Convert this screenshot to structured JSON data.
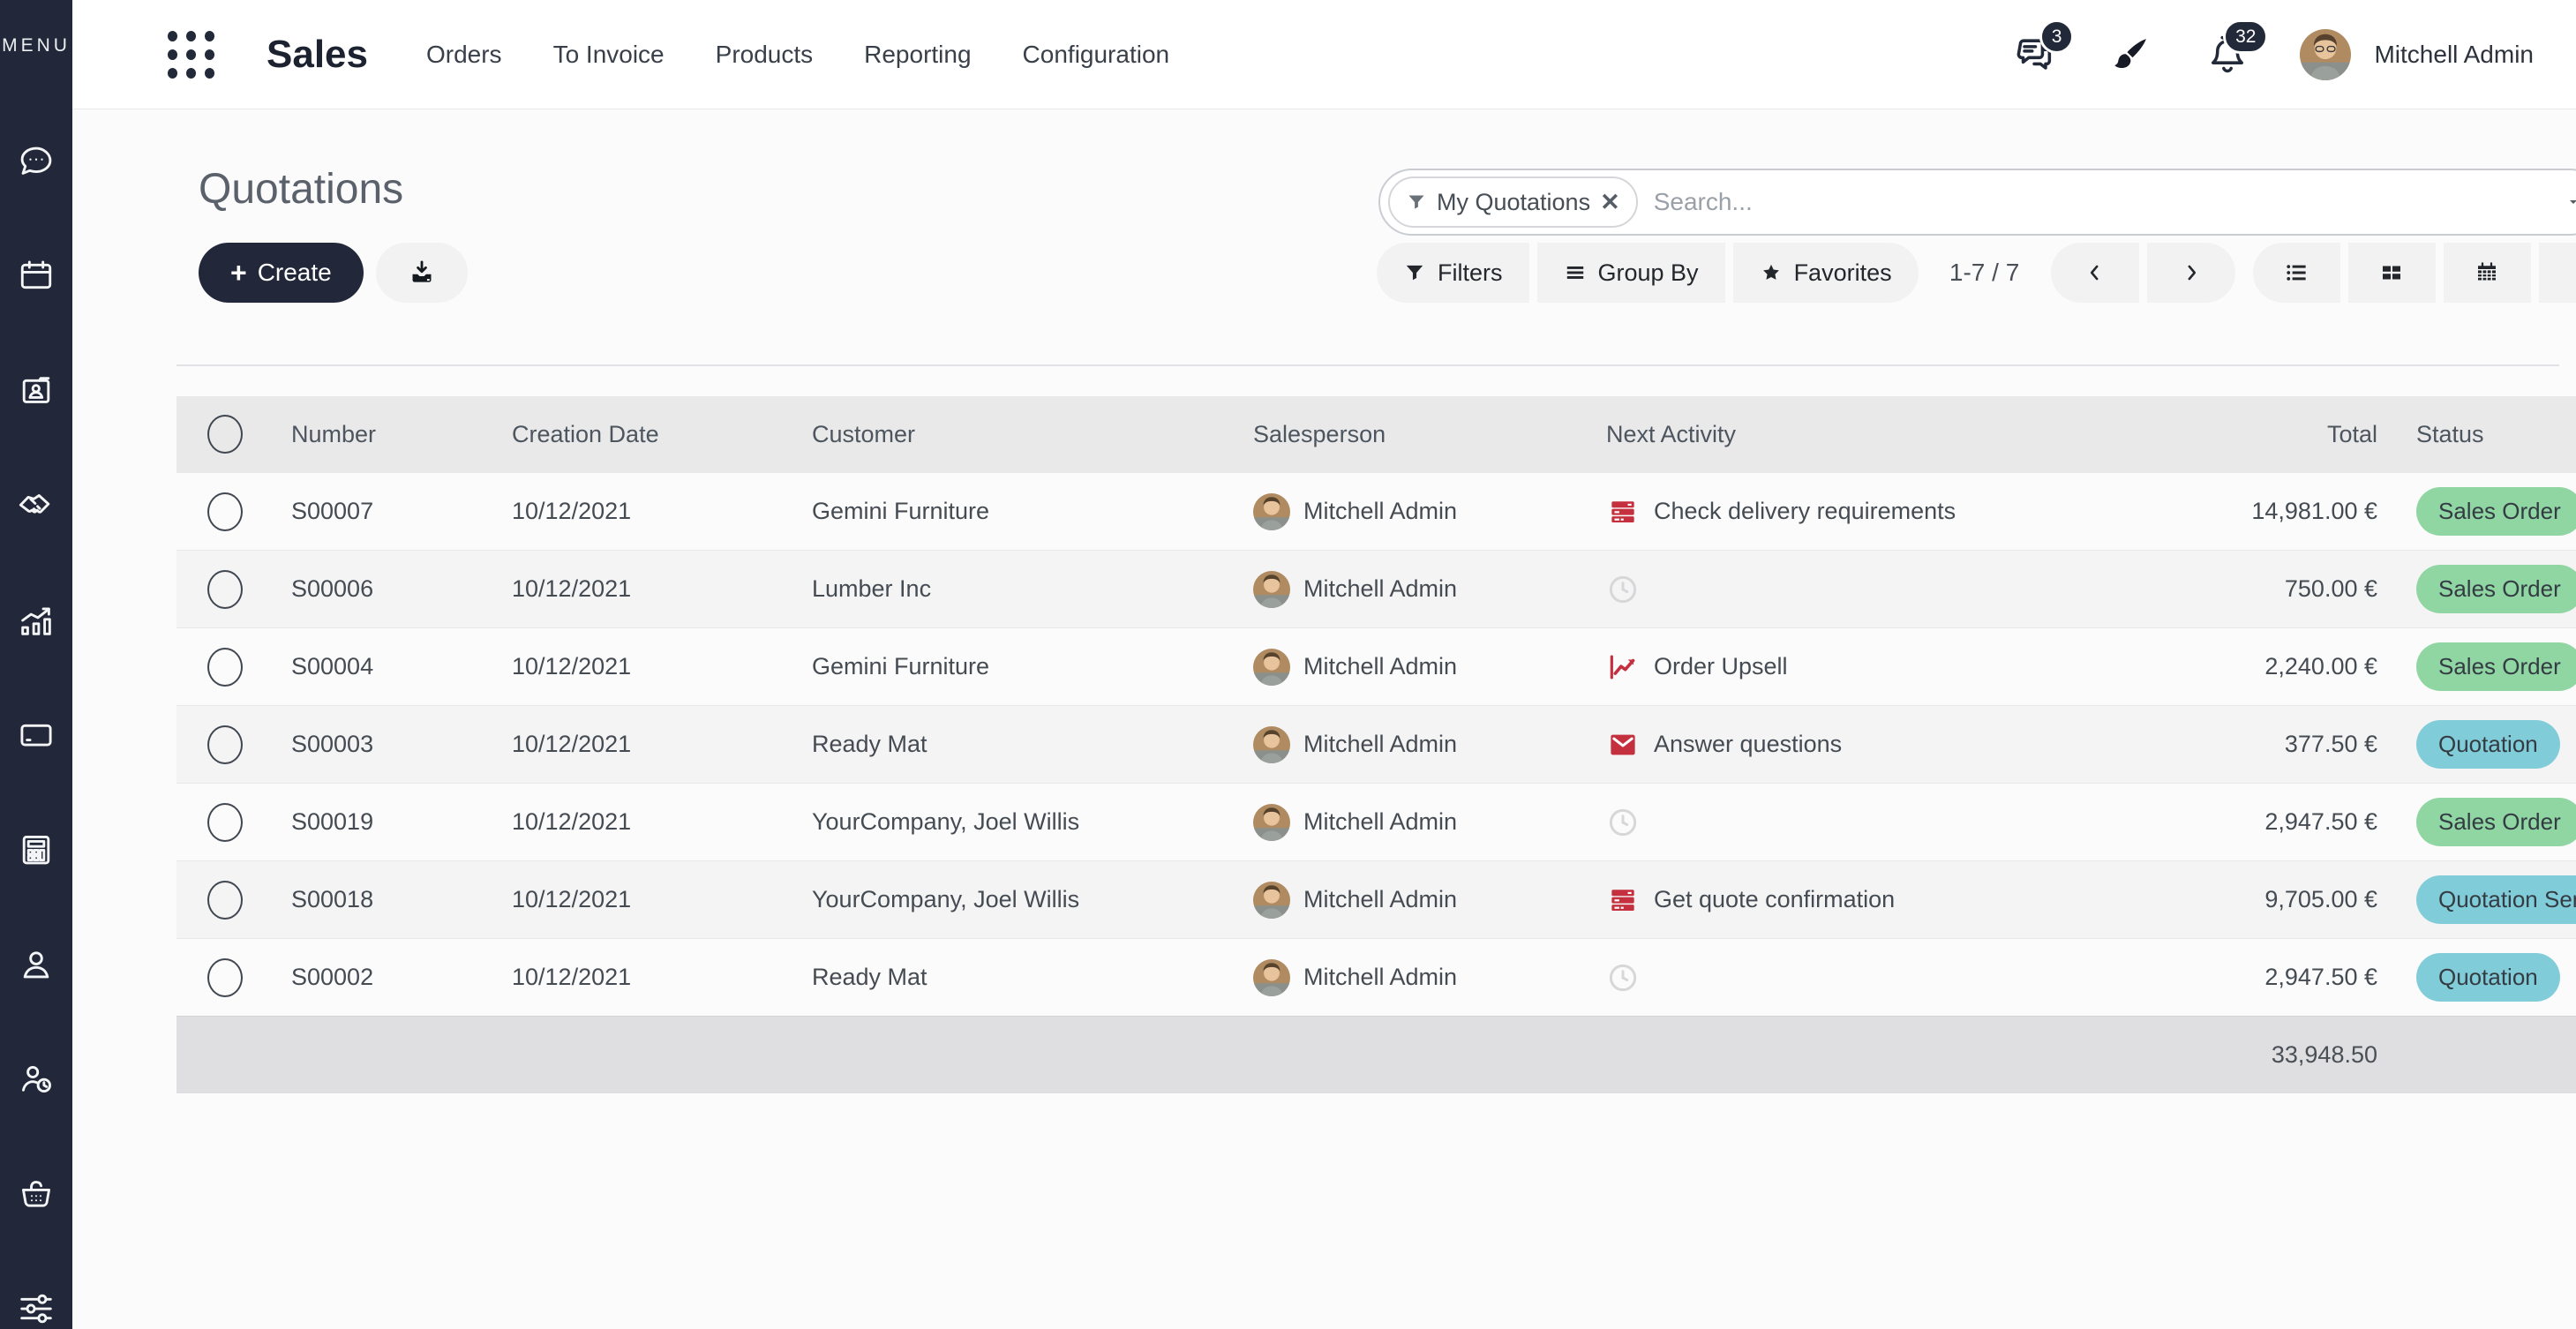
{
  "sidebar": {
    "menu_label": "MENU",
    "icons": [
      "discuss-icon",
      "calendar-icon",
      "contacts-icon",
      "crm-handshake-icon",
      "sales-chart-icon",
      "invoicing-card-icon",
      "accounting-calculator-icon",
      "employees-user-icon",
      "timesheets-user-clock-icon",
      "point-of-sale-basket-icon",
      "settings-sliders-icon"
    ]
  },
  "navbar": {
    "app_name": "Sales",
    "menu_items": [
      "Orders",
      "To Invoice",
      "Products",
      "Reporting",
      "Configuration"
    ],
    "message_badge": "3",
    "notification_badge": "32",
    "user_name": "Mitchell Admin"
  },
  "page": {
    "title": "Quotations",
    "create_label": "Create"
  },
  "search": {
    "filter_tag": "My Quotations",
    "placeholder": "Search..."
  },
  "controls": {
    "filters": "Filters",
    "group_by": "Group By",
    "favorites": "Favorites",
    "pager": "1-7 / 7"
  },
  "status_colors": {
    "sales_order": "#8fd6a3",
    "quotation": "#80cdd9"
  },
  "activity_color": "#c5303e",
  "table": {
    "columns": [
      "Number",
      "Creation Date",
      "Customer",
      "Salesperson",
      "Next Activity",
      "Total",
      "Status"
    ],
    "rows": [
      {
        "number": "S00007",
        "date": "10/12/2021",
        "customer": "Gemini Furniture",
        "salesperson": "Mitchell Admin",
        "activity_icon": "tasks-icon",
        "activity": "Check delivery requirements",
        "total": "14,981.00 €",
        "status": "Sales Order",
        "status_type": "sales_order"
      },
      {
        "number": "S00006",
        "date": "10/12/2021",
        "customer": "Lumber Inc",
        "salesperson": "Mitchell Admin",
        "activity_icon": "clock-icon",
        "activity": "",
        "total": "750.00 €",
        "status": "Sales Order",
        "status_type": "sales_order"
      },
      {
        "number": "S00004",
        "date": "10/12/2021",
        "customer": "Gemini Furniture",
        "salesperson": "Mitchell Admin",
        "activity_icon": "chart-icon",
        "activity": "Order Upsell",
        "total": "2,240.00 €",
        "status": "Sales Order",
        "status_type": "sales_order"
      },
      {
        "number": "S00003",
        "date": "10/12/2021",
        "customer": "Ready Mat",
        "salesperson": "Mitchell Admin",
        "activity_icon": "envelope-icon",
        "activity": "Answer questions",
        "total": "377.50 €",
        "status": "Quotation",
        "status_type": "quotation"
      },
      {
        "number": "S00019",
        "date": "10/12/2021",
        "customer": "YourCompany, Joel Willis",
        "salesperson": "Mitchell Admin",
        "activity_icon": "clock-icon",
        "activity": "",
        "total": "2,947.50 €",
        "status": "Sales Order",
        "status_type": "sales_order"
      },
      {
        "number": "S00018",
        "date": "10/12/2021",
        "customer": "YourCompany, Joel Willis",
        "salesperson": "Mitchell Admin",
        "activity_icon": "tasks-icon",
        "activity": "Get quote confirmation",
        "total": "9,705.00 €",
        "status": "Quotation Sent",
        "status_type": "quotation"
      },
      {
        "number": "S00002",
        "date": "10/12/2021",
        "customer": "Ready Mat",
        "salesperson": "Mitchell Admin",
        "activity_icon": "clock-icon",
        "activity": "",
        "total": "2,947.50 €",
        "status": "Quotation",
        "status_type": "quotation"
      }
    ],
    "footer_total": "33,948.50"
  }
}
